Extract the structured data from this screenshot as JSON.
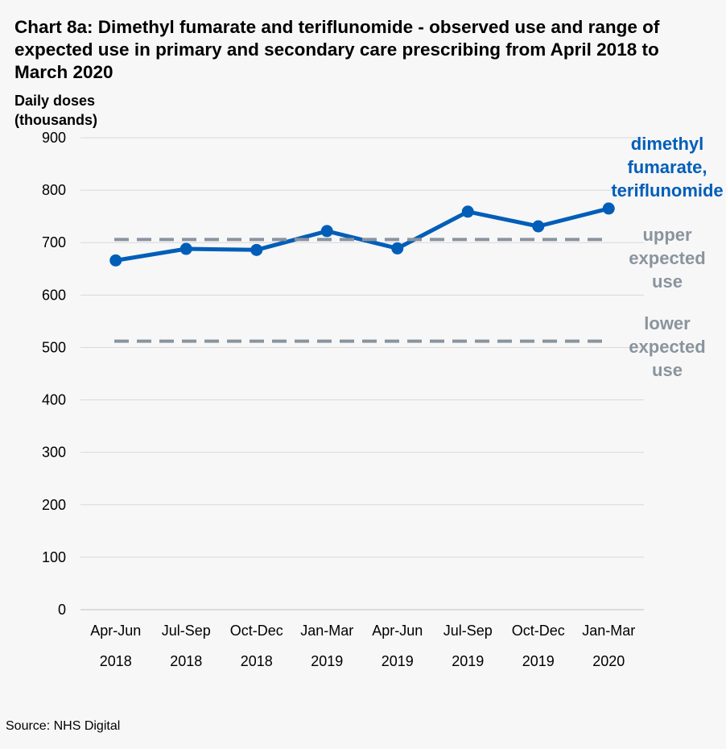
{
  "chart_data": {
    "type": "line",
    "title": "Chart 8a: Dimethyl fumarate and teriflunomide - observed use and range of expected use in primary and secondary care prescribing from April 2018 to March 2020",
    "ylabel": "Daily doses (thousands)",
    "xlabel": "",
    "categories": [
      {
        "line1": "Apr-Jun",
        "line2": "2018"
      },
      {
        "line1": "Jul-Sep",
        "line2": "2018"
      },
      {
        "line1": "Oct-Dec",
        "line2": "2018"
      },
      {
        "line1": "Jan-Mar",
        "line2": "2019"
      },
      {
        "line1": "Apr-Jun",
        "line2": "2019"
      },
      {
        "line1": "Jul-Sep",
        "line2": "2019"
      },
      {
        "line1": "Oct-Dec",
        "line2": "2019"
      },
      {
        "line1": "Jan-Mar",
        "line2": "2020"
      }
    ],
    "ylim": [
      0,
      900
    ],
    "yticks": [
      0,
      100,
      200,
      300,
      400,
      500,
      600,
      700,
      800,
      900
    ],
    "grid": true,
    "series": [
      {
        "name": "dimethyl fumarate, teriflunomide",
        "label_lines": [
          "dimethyl",
          "fumarate,",
          "teriflunomide"
        ],
        "values": [
          666,
          688,
          686,
          722,
          689,
          759,
          731,
          765
        ],
        "color": "#005eb8",
        "style": "solid"
      },
      {
        "name": "upper expected use",
        "label_lines": [
          "upper",
          "expected",
          "use"
        ],
        "values": [
          706,
          706,
          706,
          706,
          706,
          706,
          706,
          706
        ],
        "color": "#8a949e",
        "style": "dashed"
      },
      {
        "name": "lower expected use",
        "label_lines": [
          "lower",
          "expected",
          "use"
        ],
        "values": [
          512,
          512,
          512,
          512,
          512,
          512,
          512,
          512
        ],
        "color": "#8a949e",
        "style": "dashed"
      }
    ]
  },
  "source": "Source: NHS Digital"
}
